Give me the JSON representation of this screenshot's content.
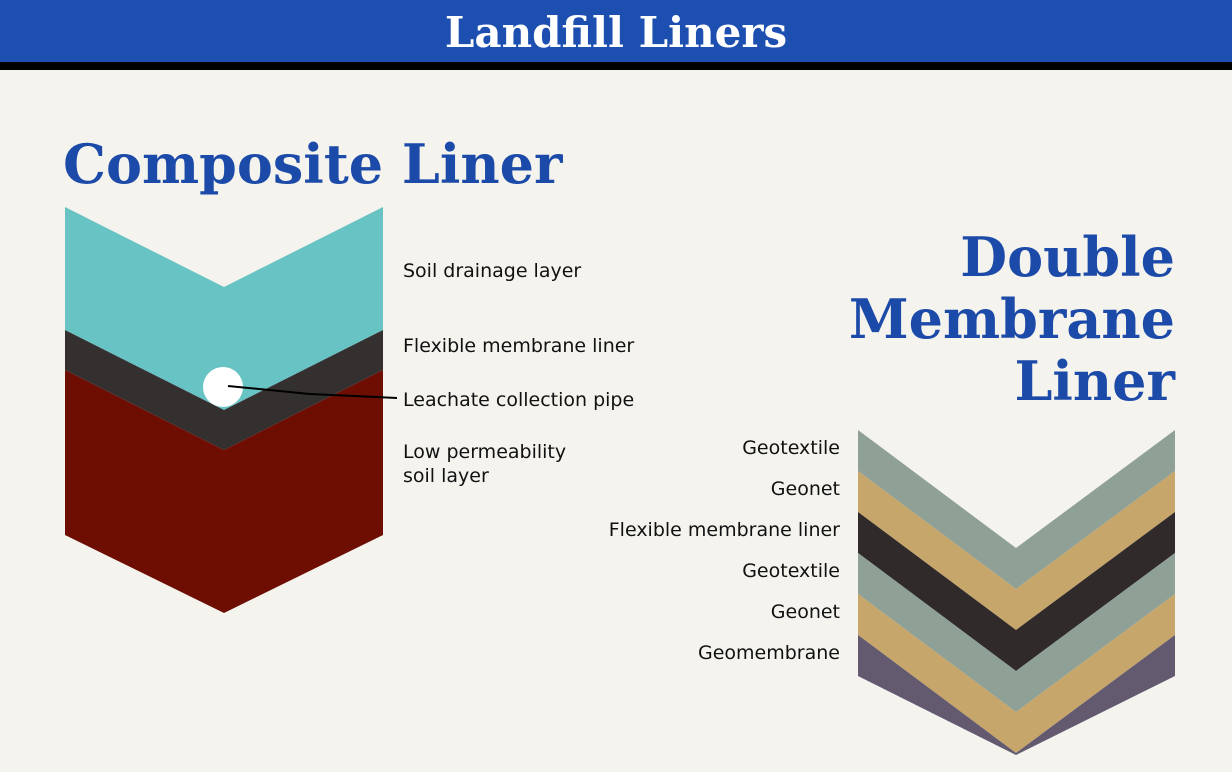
{
  "header": {
    "title": "Landfill Liners"
  },
  "composite": {
    "title": "Composite Liner",
    "layers": [
      {
        "lines": [
          "Soil drainage layer"
        ]
      },
      {
        "lines": [
          "Flexible membrane liner"
        ]
      },
      {
        "lines": [
          "Leachate collection pipe"
        ]
      },
      {
        "lines": [
          "Low permeability",
          "soil layer"
        ]
      }
    ]
  },
  "double": {
    "title_lines": [
      "Double",
      "Membrane",
      "Liner"
    ],
    "layers": [
      "Geotextile",
      "Geonet",
      "Flexible membrane liner",
      "Geotextile",
      "Geonet",
      "Geomembrane"
    ]
  }
}
